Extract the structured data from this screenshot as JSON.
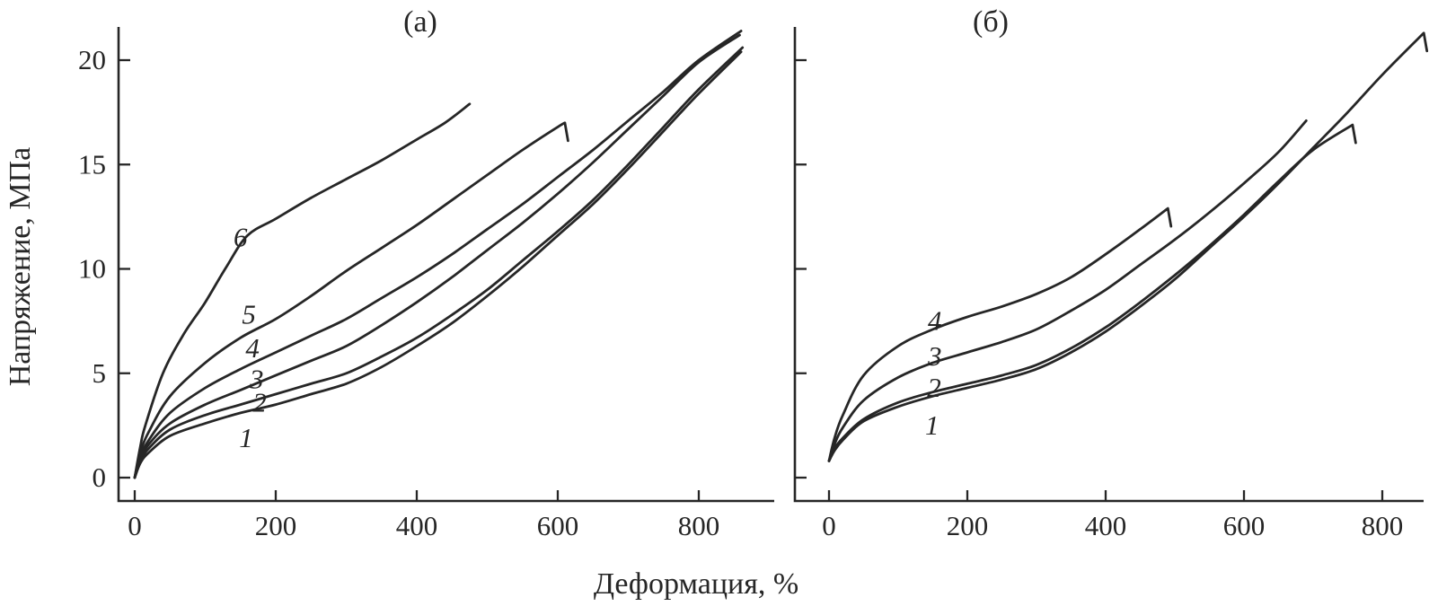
{
  "figure": {
    "y_axis_label": "Напряжение, МПа",
    "x_axis_label": "Деформация, %"
  },
  "chart_data": [
    {
      "type": "line",
      "panel_label": "(а)",
      "xlabel": "Деформация, %",
      "ylabel": "Напряжение, МПа",
      "xlim": [
        0,
        905
      ],
      "ylim": [
        0,
        21.6
      ],
      "x_ticks": [
        0,
        200,
        400,
        600,
        800
      ],
      "y_ticks": [
        0,
        5,
        10,
        15,
        20
      ],
      "show_y_tick_labels": true,
      "grid": false,
      "legend": "none",
      "line_color": "#262626",
      "series": [
        {
          "name": "1",
          "label_pos": {
            "x": 158,
            "y": 1.9
          },
          "break_hook": false,
          "points": [
            [
              0,
              0
            ],
            [
              8,
              0.7
            ],
            [
              20,
              1.2
            ],
            [
              50,
              2.0
            ],
            [
              100,
              2.6
            ],
            [
              150,
              3.1
            ],
            [
              200,
              3.5
            ],
            [
              250,
              4.0
            ],
            [
              300,
              4.5
            ],
            [
              350,
              5.3
            ],
            [
              400,
              6.3
            ],
            [
              450,
              7.4
            ],
            [
              500,
              8.7
            ],
            [
              550,
              10.1
            ],
            [
              600,
              11.6
            ],
            [
              650,
              13.1
            ],
            [
              700,
              14.8
            ],
            [
              750,
              16.6
            ],
            [
              800,
              18.4
            ],
            [
              860,
              20.4
            ]
          ]
        },
        {
          "name": "2",
          "label_pos": {
            "x": 177,
            "y": 3.6
          },
          "break_hook": false,
          "points": [
            [
              0,
              0
            ],
            [
              8,
              0.8
            ],
            [
              20,
              1.4
            ],
            [
              50,
              2.3
            ],
            [
              100,
              3.0
            ],
            [
              150,
              3.5
            ],
            [
              200,
              4.0
            ],
            [
              250,
              4.5
            ],
            [
              300,
              5.0
            ],
            [
              350,
              5.8
            ],
            [
              400,
              6.7
            ],
            [
              450,
              7.8
            ],
            [
              500,
              9.0
            ],
            [
              550,
              10.4
            ],
            [
              600,
              11.8
            ],
            [
              650,
              13.3
            ],
            [
              700,
              15.0
            ],
            [
              750,
              16.8
            ],
            [
              800,
              18.6
            ],
            [
              862,
              20.6
            ]
          ]
        },
        {
          "name": "3",
          "label_pos": {
            "x": 173,
            "y": 4.7
          },
          "break_hook": false,
          "points": [
            [
              0,
              0
            ],
            [
              8,
              0.9
            ],
            [
              20,
              1.6
            ],
            [
              50,
              2.6
            ],
            [
              100,
              3.5
            ],
            [
              150,
              4.2
            ],
            [
              200,
              4.9
            ],
            [
              250,
              5.6
            ],
            [
              300,
              6.3
            ],
            [
              350,
              7.3
            ],
            [
              400,
              8.4
            ],
            [
              450,
              9.6
            ],
            [
              500,
              10.9
            ],
            [
              550,
              12.2
            ],
            [
              600,
              13.6
            ],
            [
              650,
              15.1
            ],
            [
              700,
              16.7
            ],
            [
              750,
              18.3
            ],
            [
              800,
              19.9
            ],
            [
              858,
              21.2
            ]
          ]
        },
        {
          "name": "4",
          "label_pos": {
            "x": 167,
            "y": 6.2
          },
          "break_hook": false,
          "points": [
            [
              0,
              0
            ],
            [
              8,
              1.0
            ],
            [
              20,
              1.8
            ],
            [
              50,
              3.1
            ],
            [
              100,
              4.3
            ],
            [
              150,
              5.2
            ],
            [
              200,
              6.0
            ],
            [
              250,
              6.8
            ],
            [
              300,
              7.6
            ],
            [
              350,
              8.6
            ],
            [
              400,
              9.6
            ],
            [
              450,
              10.7
            ],
            [
              500,
              11.9
            ],
            [
              550,
              13.1
            ],
            [
              600,
              14.4
            ],
            [
              650,
              15.7
            ],
            [
              700,
              17.1
            ],
            [
              750,
              18.5
            ],
            [
              800,
              20.0
            ],
            [
              860,
              21.4
            ]
          ]
        },
        {
          "name": "5",
          "label_pos": {
            "x": 162,
            "y": 7.8
          },
          "break_hook": true,
          "points": [
            [
              0,
              0
            ],
            [
              8,
              1.2
            ],
            [
              20,
              2.2
            ],
            [
              50,
              3.9
            ],
            [
              100,
              5.5
            ],
            [
              150,
              6.7
            ],
            [
              200,
              7.6
            ],
            [
              250,
              8.7
            ],
            [
              300,
              9.9
            ],
            [
              350,
              11.0
            ],
            [
              400,
              12.1
            ],
            [
              450,
              13.3
            ],
            [
              500,
              14.5
            ],
            [
              550,
              15.7
            ],
            [
              600,
              16.8
            ],
            [
              610,
              17.0
            ]
          ]
        },
        {
          "name": "6",
          "label_pos": {
            "x": 150,
            "y": 11.5
          },
          "break_hook": false,
          "points": [
            [
              0,
              0
            ],
            [
              8,
              1.5
            ],
            [
              15,
              2.5
            ],
            [
              40,
              5.0
            ],
            [
              70,
              6.9
            ],
            [
              100,
              8.4
            ],
            [
              130,
              10.1
            ],
            [
              160,
              11.6
            ],
            [
              200,
              12.4
            ],
            [
              250,
              13.4
            ],
            [
              300,
              14.3
            ],
            [
              350,
              15.2
            ],
            [
              400,
              16.2
            ],
            [
              440,
              17.0
            ],
            [
              475,
              17.9
            ]
          ]
        }
      ]
    },
    {
      "type": "line",
      "panel_label": "(б)",
      "xlabel": "Деформация, %",
      "ylabel": "Напряжение, МПа",
      "xlim": [
        0,
        860
      ],
      "ylim": [
        0,
        21.6
      ],
      "x_ticks": [
        0,
        200,
        400,
        600,
        800
      ],
      "y_ticks": [
        0,
        5,
        10,
        15,
        20
      ],
      "show_y_tick_labels": false,
      "grid": false,
      "legend": "none",
      "line_color": "#262626",
      "series": [
        {
          "name": "1",
          "label_pos": {
            "x": 149,
            "y": 2.5
          },
          "break_hook": true,
          "points": [
            [
              0,
              0.8
            ],
            [
              8,
              1.3
            ],
            [
              20,
              1.8
            ],
            [
              50,
              2.7
            ],
            [
              100,
              3.4
            ],
            [
              150,
              3.9
            ],
            [
              200,
              4.3
            ],
            [
              250,
              4.7
            ],
            [
              300,
              5.2
            ],
            [
              350,
              6.0
            ],
            [
              400,
              7.0
            ],
            [
              450,
              8.2
            ],
            [
              500,
              9.5
            ],
            [
              550,
              11.0
            ],
            [
              600,
              12.5
            ],
            [
              650,
              14.1
            ],
            [
              700,
              15.8
            ],
            [
              750,
              17.5
            ],
            [
              800,
              19.3
            ],
            [
              860,
              21.3
            ]
          ]
        },
        {
          "name": "2",
          "label_pos": {
            "x": 152,
            "y": 4.3
          },
          "break_hook": true,
          "points": [
            [
              0,
              0.8
            ],
            [
              8,
              1.4
            ],
            [
              20,
              1.9
            ],
            [
              50,
              2.8
            ],
            [
              100,
              3.6
            ],
            [
              150,
              4.1
            ],
            [
              200,
              4.5
            ],
            [
              250,
              4.9
            ],
            [
              300,
              5.4
            ],
            [
              350,
              6.2
            ],
            [
              400,
              7.2
            ],
            [
              450,
              8.4
            ],
            [
              500,
              9.7
            ],
            [
              550,
              11.1
            ],
            [
              600,
              12.6
            ],
            [
              650,
              14.2
            ],
            [
              700,
              15.7
            ],
            [
              757,
              16.9
            ]
          ]
        },
        {
          "name": "3",
          "label_pos": {
            "x": 153,
            "y": 5.8
          },
          "break_hook": false,
          "points": [
            [
              0,
              0.8
            ],
            [
              8,
              1.6
            ],
            [
              20,
              2.4
            ],
            [
              50,
              3.7
            ],
            [
              100,
              4.8
            ],
            [
              150,
              5.5
            ],
            [
              200,
              6.0
            ],
            [
              250,
              6.5
            ],
            [
              300,
              7.1
            ],
            [
              350,
              8.0
            ],
            [
              400,
              9.0
            ],
            [
              450,
              10.2
            ],
            [
              500,
              11.4
            ],
            [
              550,
              12.7
            ],
            [
              600,
              14.1
            ],
            [
              650,
              15.6
            ],
            [
              690,
              17.1
            ]
          ]
        },
        {
          "name": "4",
          "label_pos": {
            "x": 153,
            "y": 7.5
          },
          "break_hook": true,
          "points": [
            [
              0,
              0.8
            ],
            [
              8,
              1.9
            ],
            [
              20,
              3.0
            ],
            [
              50,
              4.9
            ],
            [
              100,
              6.3
            ],
            [
              150,
              7.1
            ],
            [
              200,
              7.7
            ],
            [
              250,
              8.2
            ],
            [
              300,
              8.8
            ],
            [
              350,
              9.6
            ],
            [
              400,
              10.7
            ],
            [
              450,
              11.9
            ],
            [
              490,
              12.9
            ]
          ]
        }
      ]
    }
  ]
}
